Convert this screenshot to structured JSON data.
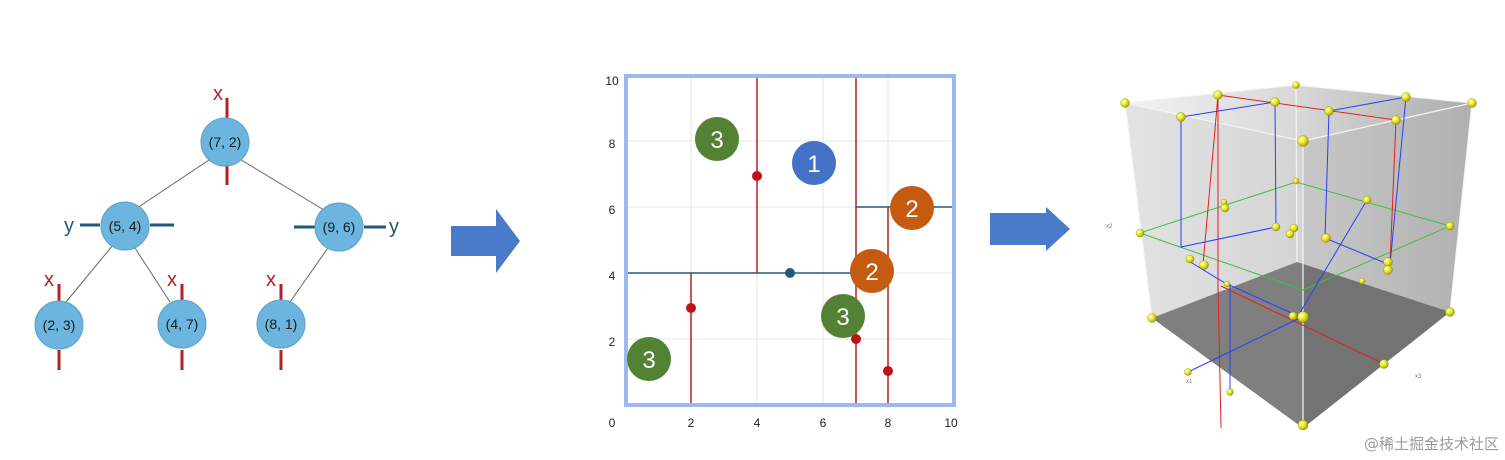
{
  "tree": {
    "nodes": [
      {
        "id": "root",
        "label": "(7, 2)",
        "axis": "x"
      },
      {
        "id": "left",
        "label": "(5, 4)",
        "axis": "y"
      },
      {
        "id": "right",
        "label": "(9, 6)",
        "axis": "y"
      },
      {
        "id": "ll",
        "label": "(2, 3)",
        "axis": "x"
      },
      {
        "id": "lr",
        "label": "(4, 7)",
        "axis": "x"
      },
      {
        "id": "rl",
        "label": "(8, 1)",
        "axis": "x"
      }
    ]
  },
  "partition": {
    "x_ticks": [
      "0",
      "2",
      "4",
      "6",
      "8",
      "10"
    ],
    "y_ticks": [
      "2",
      "4",
      "6",
      "8",
      "10"
    ],
    "region_labels": [
      "1",
      "2",
      "2",
      "3",
      "3",
      "3"
    ]
  },
  "colors": {
    "node_fill": "#6bb5de",
    "split_red": "#b22222",
    "split_blue": "#1f5a7a",
    "arrow": "#4a7bc8",
    "frame": "#9bb8ef",
    "circle_1": "#4472c4",
    "circle_2": "#c55a11",
    "circle_3": "#548235"
  },
  "cube": {
    "axis_labels": [
      "x2",
      "x1",
      "x3"
    ]
  },
  "watermark": "@稀土掘金技术社区"
}
